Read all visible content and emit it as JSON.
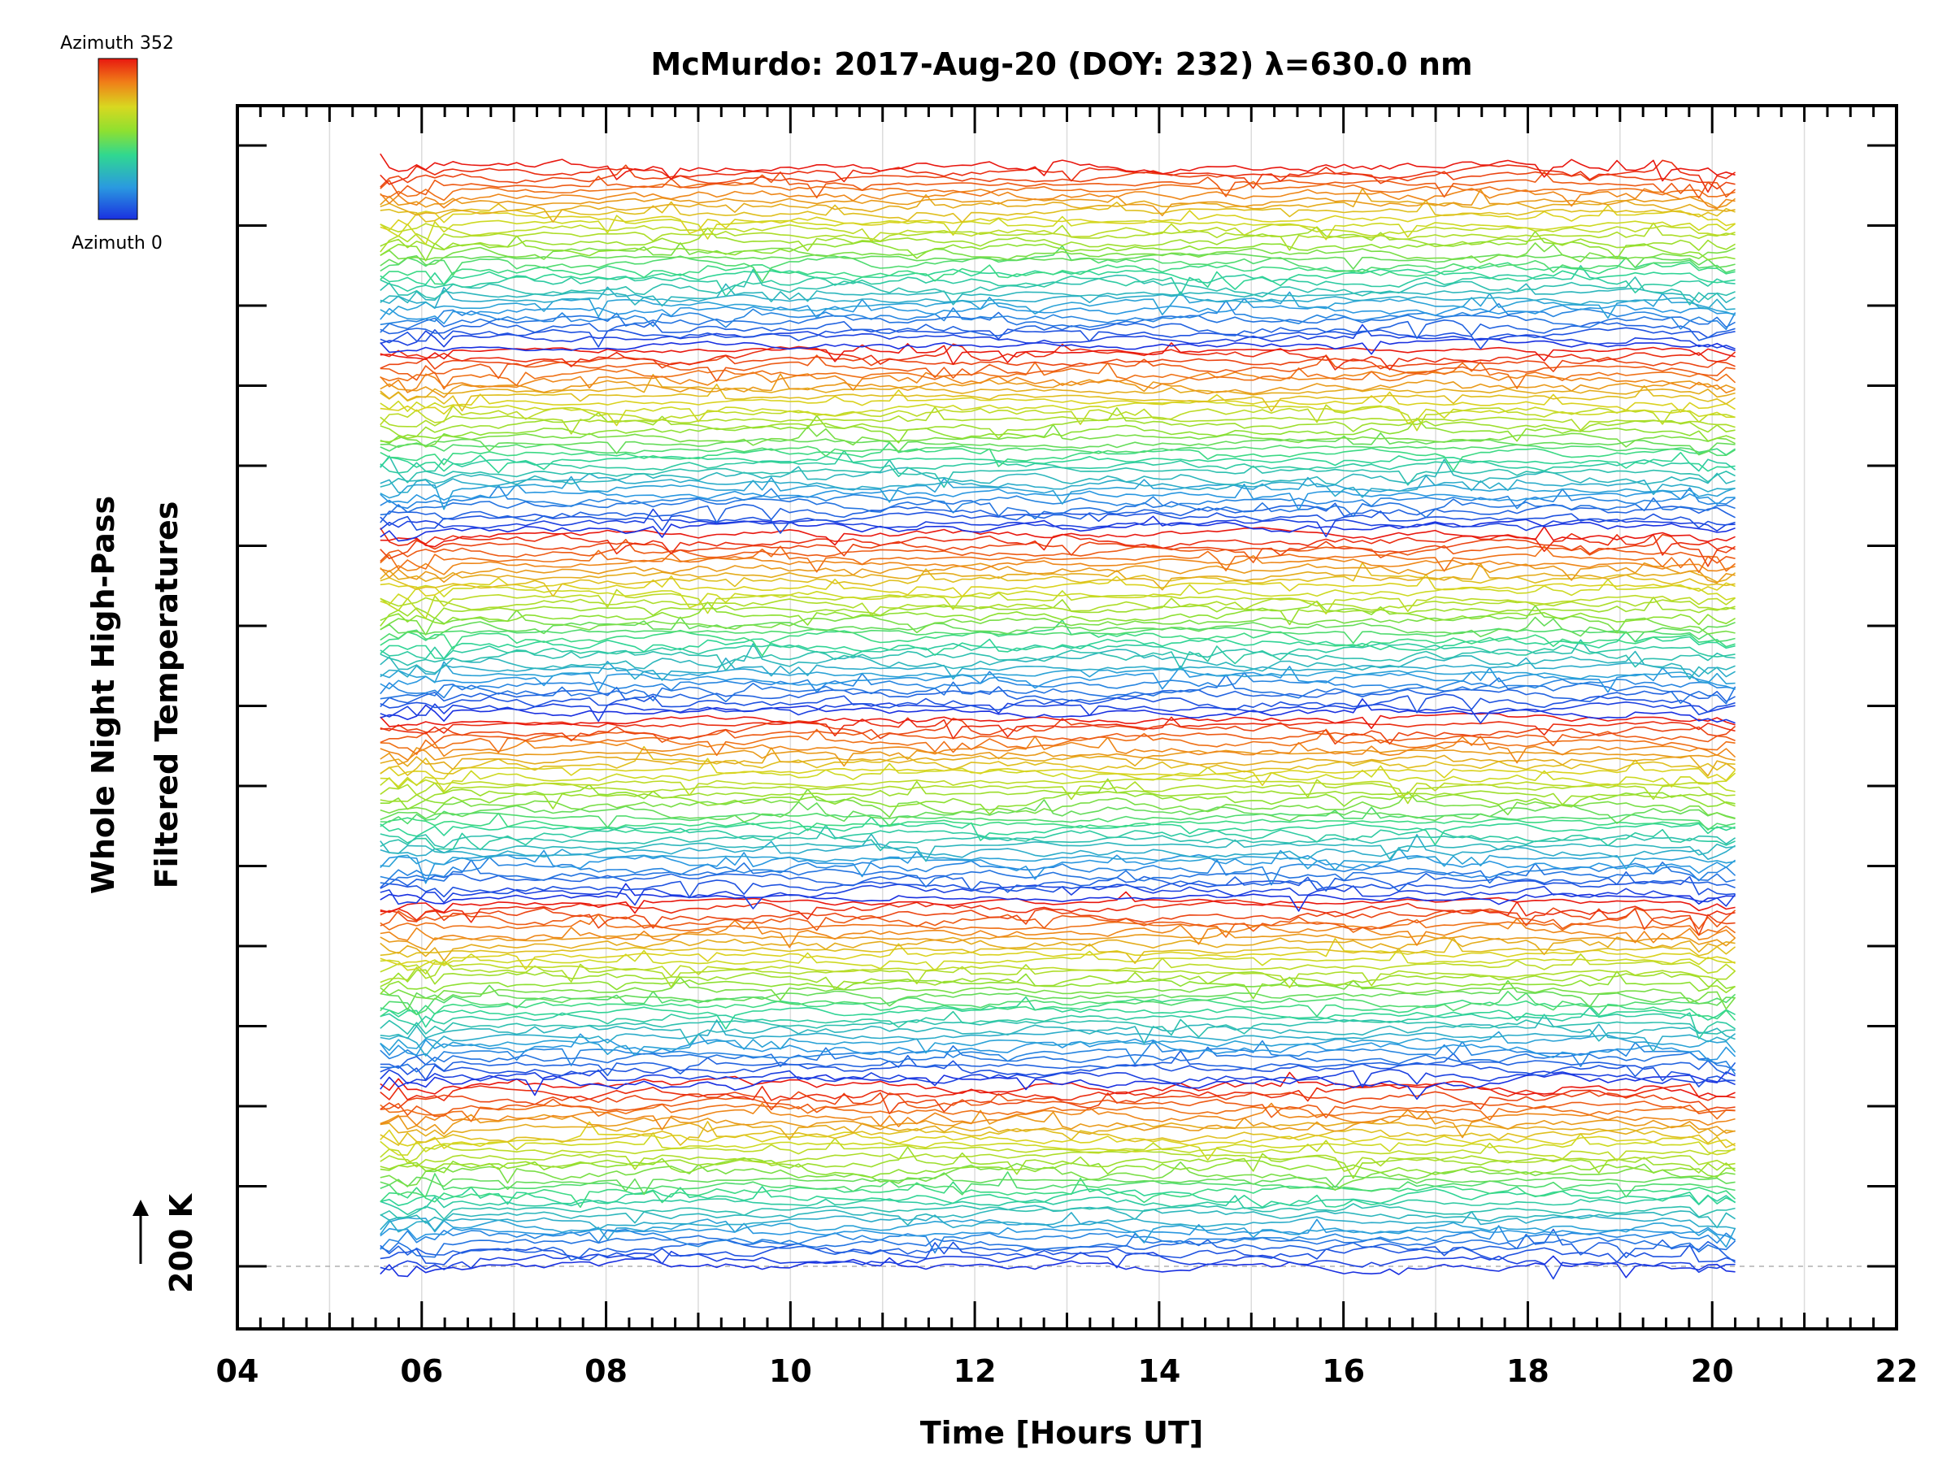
{
  "chart_data": {
    "type": "line",
    "title": "McMurdo: 2017-Aug-20 (DOY: 232) λ=630.0 nm",
    "xlabel": "Time [Hours UT]",
    "ylabel_line1": "Whole Night High-Pass",
    "ylabel_line2": "Filtered Temperatures",
    "scale_label": "200 K",
    "xlim": [
      4,
      22
    ],
    "x_ticks": [
      "04",
      "06",
      "08",
      "10",
      "12",
      "14",
      "16",
      "18",
      "20",
      "22"
    ],
    "x_tick_values": [
      4,
      6,
      8,
      10,
      12,
      14,
      16,
      18,
      20,
      22
    ],
    "series_start_hour": 5.55,
    "series_end_hour": 20.25,
    "series_count": 192,
    "series_per_group": 32,
    "group_count": 6,
    "legend": {
      "top_label": "Azimuth 352",
      "bottom_label": "Azimuth 0",
      "min_azimuth": 0,
      "max_azimuth": 352,
      "colormap": "rainbow"
    }
  }
}
